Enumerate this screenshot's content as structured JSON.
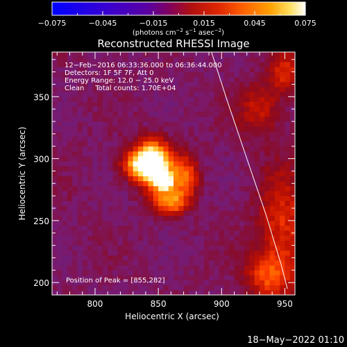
{
  "colorbar": {
    "ticks": [
      "−0.075",
      "−0.045",
      "−0.015",
      "0.015",
      "0.045",
      "0.075"
    ],
    "unit_main": "(photons cm",
    "unit_exp1": "−2",
    "unit_mid": " s",
    "unit_exp2": "−1",
    "unit_mid2": " asec",
    "unit_exp3": "−2",
    "unit_end": ")"
  },
  "info": {
    "line1": "12−Feb−2016 06:33:36.000 to 06:36:44.000",
    "line2": "Detectors: 1F 5F 7F, Att 0",
    "line3": "Energy Range: 12.0 − 25.0 keV",
    "line4": "Clean     Total counts: 1.70E+04",
    "peak": "Position of Peak = [855,282]"
  },
  "footer": {
    "date": "18−May−2022 01:10"
  },
  "chart_data": {
    "type": "heatmap",
    "title": "Reconstructed RHESSI Image",
    "xlabel": "Heliocentric X (arcsec)",
    "ylabel": "Heliocentric Y (arcsec)",
    "xlim": [
      766,
      958
    ],
    "ylim": [
      190,
      386
    ],
    "xticks": [
      800,
      850,
      900,
      950
    ],
    "yticks": [
      200,
      250,
      300,
      350
    ],
    "xtick_labels": [
      "800",
      "850",
      "900",
      "950"
    ],
    "ytick_labels": [
      "200",
      "250",
      "300",
      "350"
    ],
    "colorbar_range": [
      -0.075,
      0.075
    ],
    "peak_position": [
      855,
      282
    ],
    "colors": {
      "colormap": [
        "#0000ff",
        "#4000c0",
        "#602080",
        "#7a1a70",
        "#8a0a20",
        "#c01000",
        "#ff4000",
        "#ff9000",
        "#ffe060",
        "#ffffff"
      ]
    },
    "limb_line": [
      [
        892,
        386
      ],
      [
        905,
        345
      ],
      [
        920,
        300
      ],
      [
        935,
        255
      ],
      [
        947,
        215
      ],
      [
        952,
        195
      ]
    ],
    "emission_sources": [
      {
        "x": 855,
        "y": 282,
        "value": 0.075,
        "sx": 4,
        "sy": 4
      },
      {
        "x": 850,
        "y": 290,
        "value": 0.05,
        "sx": 10,
        "sy": 14
      },
      {
        "x": 843,
        "y": 300,
        "value": 0.045,
        "sx": 9,
        "sy": 11
      },
      {
        "x": 860,
        "y": 265,
        "value": 0.035,
        "sx": 9,
        "sy": 7
      },
      {
        "x": 832,
        "y": 295,
        "value": 0.03,
        "sx": 9,
        "sy": 8
      },
      {
        "x": 872,
        "y": 285,
        "value": 0.03,
        "sx": 7,
        "sy": 12
      },
      {
        "x": 948,
        "y": 240,
        "value": 0.02,
        "sx": 14,
        "sy": 36
      },
      {
        "x": 930,
        "y": 340,
        "value": 0.012,
        "sx": 12,
        "sy": 14
      },
      {
        "x": 935,
        "y": 205,
        "value": 0.015,
        "sx": 12,
        "sy": 12
      },
      {
        "x": 950,
        "y": 370,
        "value": 0.018,
        "sx": 9,
        "sy": 12
      }
    ]
  }
}
